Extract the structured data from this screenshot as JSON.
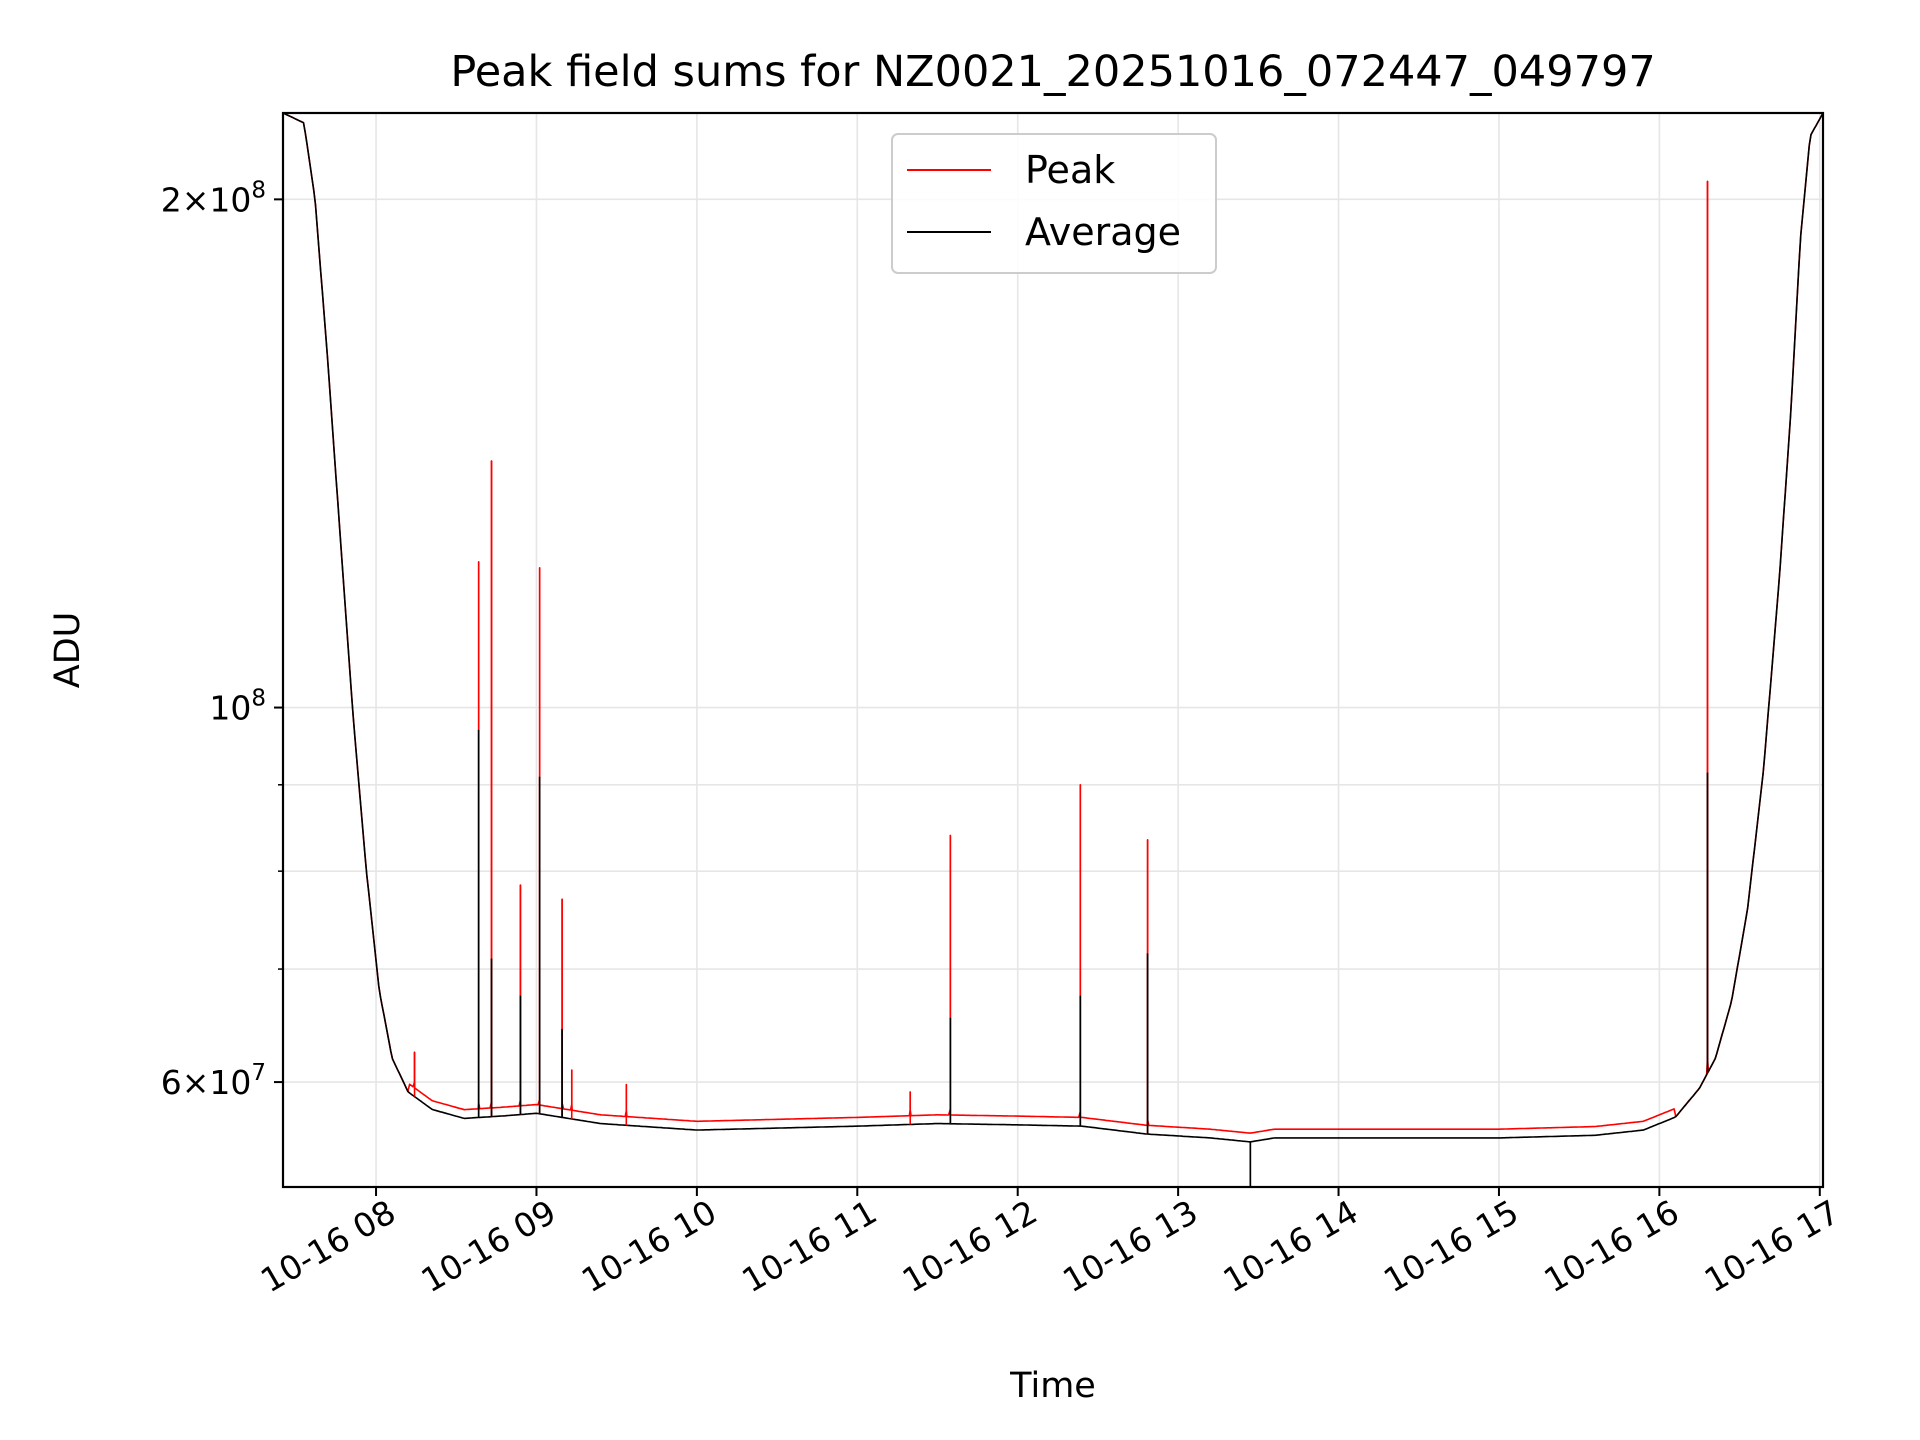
{
  "chart_data": {
    "type": "line",
    "title": "Peak field sums for NZ0021_20251016_072447_049797",
    "xlabel": "Time",
    "ylabel": "ADU",
    "yscale": "log",
    "xlim_hours": [
      7.42,
      17.02
    ],
    "ylim": [
      52000000,
      225000000
    ],
    "grid": true,
    "legend_position": "upper center",
    "x_ticks": [
      {
        "value": 8,
        "label": "10-16 08"
      },
      {
        "value": 9,
        "label": "10-16 09"
      },
      {
        "value": 10,
        "label": "10-16 10"
      },
      {
        "value": 11,
        "label": "10-16 11"
      },
      {
        "value": 12,
        "label": "10-16 12"
      },
      {
        "value": 13,
        "label": "10-16 13"
      },
      {
        "value": 14,
        "label": "10-16 14"
      },
      {
        "value": 15,
        "label": "10-16 15"
      },
      {
        "value": 16,
        "label": "10-16 16"
      },
      {
        "value": 17,
        "label": "10-16 17"
      }
    ],
    "y_major_ticks": [
      {
        "value": 60000000,
        "base": "6",
        "exp": "7",
        "sci": true
      },
      {
        "value": 100000000,
        "base": "10",
        "exp": "8",
        "sci": false
      },
      {
        "value": 200000000,
        "base": "2",
        "exp": "8",
        "sci": true
      }
    ],
    "y_minor_ticks": [
      70000000,
      80000000,
      90000000
    ],
    "series": [
      {
        "name": "Peak",
        "color": "#ff0000",
        "spikes": [
          {
            "x": 8.24,
            "y": 62500000
          },
          {
            "x": 8.64,
            "y": 122000000
          },
          {
            "x": 8.72,
            "y": 140000000
          },
          {
            "x": 8.9,
            "y": 78500000
          },
          {
            "x": 9.02,
            "y": 121000000
          },
          {
            "x": 9.16,
            "y": 77000000
          },
          {
            "x": 9.22,
            "y": 61000000
          },
          {
            "x": 9.56,
            "y": 59800000
          },
          {
            "x": 11.33,
            "y": 59200000
          },
          {
            "x": 11.58,
            "y": 84000000
          },
          {
            "x": 12.39,
            "y": 90000000
          },
          {
            "x": 12.81,
            "y": 83500000
          },
          {
            "x": 16.3,
            "y": 205000000
          }
        ]
      },
      {
        "name": "Average",
        "color": "#000000",
        "baseline": [
          {
            "x": 7.42,
            "y": 225000000
          },
          {
            "x": 7.55,
            "y": 222000000
          },
          {
            "x": 7.62,
            "y": 200000000
          },
          {
            "x": 7.7,
            "y": 160000000
          },
          {
            "x": 7.78,
            "y": 125000000
          },
          {
            "x": 7.86,
            "y": 98000000
          },
          {
            "x": 7.94,
            "y": 80000000
          },
          {
            "x": 8.02,
            "y": 68000000
          },
          {
            "x": 8.1,
            "y": 62000000
          },
          {
            "x": 8.2,
            "y": 59200000
          },
          {
            "x": 8.35,
            "y": 57800000
          },
          {
            "x": 8.55,
            "y": 57100000
          },
          {
            "x": 8.8,
            "y": 57300000
          },
          {
            "x": 9.0,
            "y": 57500000
          },
          {
            "x": 9.4,
            "y": 56700000
          },
          {
            "x": 10.0,
            "y": 56200000
          },
          {
            "x": 11.0,
            "y": 56500000
          },
          {
            "x": 11.5,
            "y": 56700000
          },
          {
            "x": 12.0,
            "y": 56600000
          },
          {
            "x": 12.4,
            "y": 56500000
          },
          {
            "x": 12.8,
            "y": 55900000
          },
          {
            "x": 13.2,
            "y": 55600000
          },
          {
            "x": 13.45,
            "y": 55300000
          },
          {
            "x": 13.6,
            "y": 55600000
          },
          {
            "x": 14.0,
            "y": 55600000
          },
          {
            "x": 15.0,
            "y": 55600000
          },
          {
            "x": 15.6,
            "y": 55800000
          },
          {
            "x": 15.9,
            "y": 56200000
          },
          {
            "x": 16.1,
            "y": 57200000
          },
          {
            "x": 16.25,
            "y": 59500000
          },
          {
            "x": 16.35,
            "y": 62000000
          },
          {
            "x": 16.45,
            "y": 67000000
          },
          {
            "x": 16.55,
            "y": 76000000
          },
          {
            "x": 16.65,
            "y": 92000000
          },
          {
            "x": 16.75,
            "y": 120000000
          },
          {
            "x": 16.82,
            "y": 150000000
          },
          {
            "x": 16.88,
            "y": 190000000
          },
          {
            "x": 16.94,
            "y": 218000000
          },
          {
            "x": 17.02,
            "y": 225000000
          }
        ],
        "spikes": [
          {
            "x": 8.64,
            "y": 97000000
          },
          {
            "x": 8.72,
            "y": 71000000
          },
          {
            "x": 8.9,
            "y": 67500000
          },
          {
            "x": 9.02,
            "y": 91000000
          },
          {
            "x": 9.16,
            "y": 64500000
          },
          {
            "x": 11.58,
            "y": 65500000
          },
          {
            "x": 12.39,
            "y": 67500000
          },
          {
            "x": 12.81,
            "y": 71500000
          },
          {
            "x": 13.45,
            "y": 52000000
          },
          {
            "x": 16.3,
            "y": 91500000
          }
        ]
      }
    ]
  }
}
